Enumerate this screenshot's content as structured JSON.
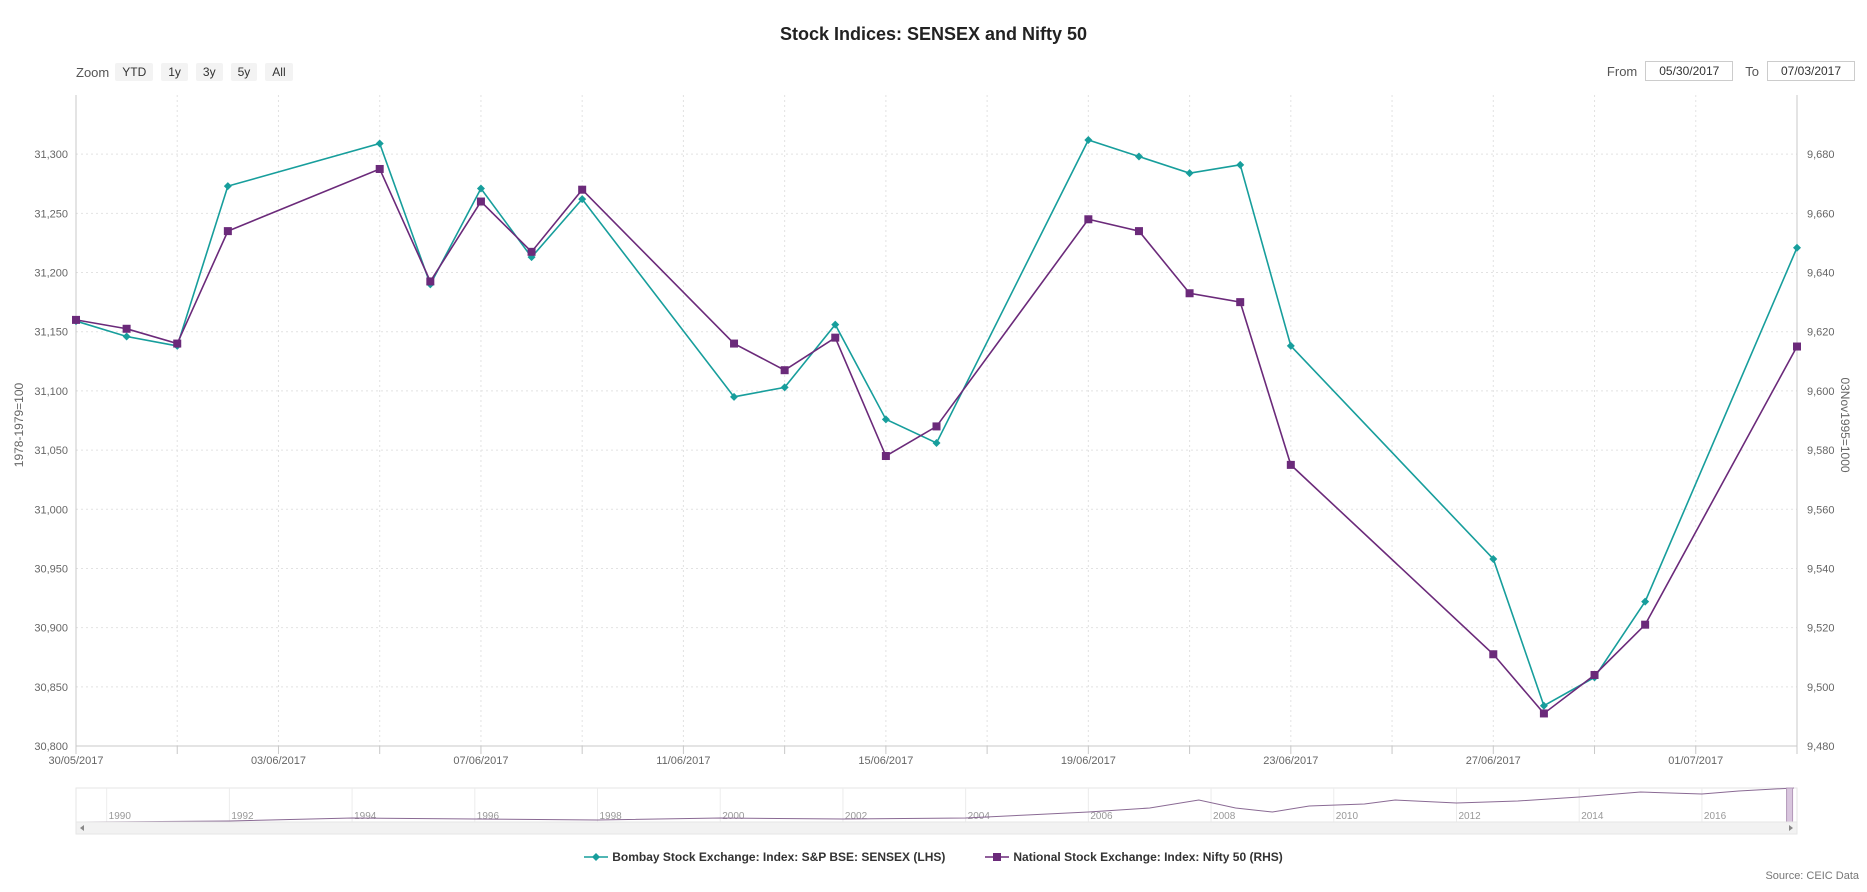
{
  "title": "Stock Indices: SENSEX and Nifty 50",
  "zoom": {
    "label": "Zoom",
    "buttons": [
      "YTD",
      "1y",
      "3y",
      "5y",
      "All"
    ]
  },
  "range": {
    "from_label": "From",
    "from_value": "05/30/2017",
    "to_label": "To",
    "to_value": "07/03/2017"
  },
  "source": "Source: CEIC Data",
  "colors": {
    "sensex": "#179e9c",
    "nifty": "#6b2a7a",
    "grid": "#e2e2e2",
    "axis": "#c8c8c8"
  },
  "chart_data": {
    "type": "line",
    "title": "Stock Indices: SENSEX and Nifty 50",
    "x_tick_labels": [
      "30/05/2017",
      "03/06/2017",
      "07/06/2017",
      "11/06/2017",
      "15/06/2017",
      "19/06/2017",
      "23/06/2017",
      "27/06/2017",
      "01/07/2017"
    ],
    "x_ticks": [
      "2017-05-30",
      "2017-06-03",
      "2017-06-07",
      "2017-06-11",
      "2017-06-15",
      "2017-06-19",
      "2017-06-23",
      "2017-06-27",
      "2017-07-01"
    ],
    "x_range": [
      "2017-05-30",
      "2017-07-03"
    ],
    "y_left": {
      "label": "1978-1979=100",
      "range": [
        30800,
        31350
      ],
      "ticks": [
        30800,
        30850,
        30900,
        30950,
        31000,
        31050,
        31100,
        31150,
        31200,
        31250,
        31300
      ],
      "tick_labels": [
        "30,800",
        "30,850",
        "30,900",
        "30,950",
        "31,000",
        "31,050",
        "31,100",
        "31,150",
        "31,200",
        "31,250",
        "31,300"
      ]
    },
    "y_right": {
      "label": "03Nov1995=1000",
      "range": [
        9480,
        9700
      ],
      "ticks": [
        9480,
        9500,
        9520,
        9540,
        9560,
        9580,
        9600,
        9620,
        9640,
        9660,
        9680
      ],
      "tick_labels": [
        "9,480",
        "9,500",
        "9,520",
        "9,540",
        "9,560",
        "9,580",
        "9,600",
        "9,620",
        "9,640",
        "9,660",
        "9,680"
      ]
    },
    "grid": true,
    "legend_position": "bottom",
    "series": [
      {
        "name": "Bombay Stock Exchange: Index: S&P BSE: SENSEX (LHS)",
        "axis": "left",
        "marker": "diamond",
        "points": [
          [
            "2017-05-30",
            31159
          ],
          [
            "2017-05-31",
            31146
          ],
          [
            "2017-06-01",
            31138
          ],
          [
            "2017-06-02",
            31273
          ],
          [
            "2017-06-05",
            31309
          ],
          [
            "2017-06-06",
            31190
          ],
          [
            "2017-06-07",
            31271
          ],
          [
            "2017-06-08",
            31213
          ],
          [
            "2017-06-09",
            31262
          ],
          [
            "2017-06-12",
            31095
          ],
          [
            "2017-06-13",
            31103
          ],
          [
            "2017-06-14",
            31156
          ],
          [
            "2017-06-15",
            31076
          ],
          [
            "2017-06-16",
            31056
          ],
          [
            "2017-06-19",
            31312
          ],
          [
            "2017-06-20",
            31298
          ],
          [
            "2017-06-21",
            31284
          ],
          [
            "2017-06-22",
            31291
          ],
          [
            "2017-06-23",
            31138
          ],
          [
            "2017-06-27",
            30958
          ],
          [
            "2017-06-28",
            30834
          ],
          [
            "2017-06-29",
            30858
          ],
          [
            "2017-06-30",
            30922
          ],
          [
            "2017-07-03",
            31221
          ]
        ]
      },
      {
        "name": "National Stock Exchange: Index: Nifty 50 (RHS)",
        "axis": "right",
        "marker": "square",
        "points": [
          [
            "2017-05-30",
            9624
          ],
          [
            "2017-05-31",
            9621
          ],
          [
            "2017-06-01",
            9616
          ],
          [
            "2017-06-02",
            9654
          ],
          [
            "2017-06-05",
            9675
          ],
          [
            "2017-06-06",
            9637
          ],
          [
            "2017-06-07",
            9664
          ],
          [
            "2017-06-08",
            9647
          ],
          [
            "2017-06-09",
            9668
          ],
          [
            "2017-06-12",
            9616
          ],
          [
            "2017-06-13",
            9607
          ],
          [
            "2017-06-14",
            9618
          ],
          [
            "2017-06-15",
            9578
          ],
          [
            "2017-06-16",
            9588
          ],
          [
            "2017-06-19",
            9658
          ],
          [
            "2017-06-20",
            9654
          ],
          [
            "2017-06-21",
            9633
          ],
          [
            "2017-06-22",
            9630
          ],
          [
            "2017-06-23",
            9575
          ],
          [
            "2017-06-27",
            9511
          ],
          [
            "2017-06-28",
            9491
          ],
          [
            "2017-06-29",
            9504
          ],
          [
            "2017-06-30",
            9521
          ],
          [
            "2017-07-03",
            9615
          ]
        ]
      }
    ],
    "navigator": {
      "year_labels": [
        "1990",
        "1992",
        "1994",
        "1996",
        "1998",
        "2000",
        "2002",
        "2004",
        "2006",
        "2008",
        "2010",
        "2012",
        "2014",
        "2016"
      ]
    }
  }
}
